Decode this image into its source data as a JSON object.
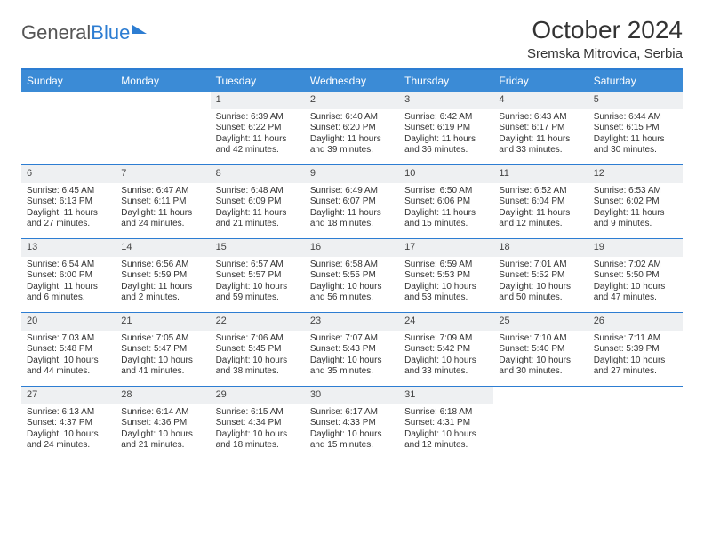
{
  "logo": {
    "text1": "General",
    "text2": "Blue"
  },
  "title": "October 2024",
  "location": "Sremska Mitrovica, Serbia",
  "day_names": [
    "Sunday",
    "Monday",
    "Tuesday",
    "Wednesday",
    "Thursday",
    "Friday",
    "Saturday"
  ],
  "colors": {
    "header_bar": "#3b8bd6",
    "border": "#2d7dd2",
    "daynum_bg": "#eef0f2",
    "text": "#333333",
    "white": "#ffffff"
  },
  "weeks": [
    [
      {
        "empty": true
      },
      {
        "empty": true
      },
      {
        "day": "1",
        "sunrise": "6:39 AM",
        "sunset": "6:22 PM",
        "daylight": "11 hours and 42 minutes."
      },
      {
        "day": "2",
        "sunrise": "6:40 AM",
        "sunset": "6:20 PM",
        "daylight": "11 hours and 39 minutes."
      },
      {
        "day": "3",
        "sunrise": "6:42 AM",
        "sunset": "6:19 PM",
        "daylight": "11 hours and 36 minutes."
      },
      {
        "day": "4",
        "sunrise": "6:43 AM",
        "sunset": "6:17 PM",
        "daylight": "11 hours and 33 minutes."
      },
      {
        "day": "5",
        "sunrise": "6:44 AM",
        "sunset": "6:15 PM",
        "daylight": "11 hours and 30 minutes."
      }
    ],
    [
      {
        "day": "6",
        "sunrise": "6:45 AM",
        "sunset": "6:13 PM",
        "daylight": "11 hours and 27 minutes."
      },
      {
        "day": "7",
        "sunrise": "6:47 AM",
        "sunset": "6:11 PM",
        "daylight": "11 hours and 24 minutes."
      },
      {
        "day": "8",
        "sunrise": "6:48 AM",
        "sunset": "6:09 PM",
        "daylight": "11 hours and 21 minutes."
      },
      {
        "day": "9",
        "sunrise": "6:49 AM",
        "sunset": "6:07 PM",
        "daylight": "11 hours and 18 minutes."
      },
      {
        "day": "10",
        "sunrise": "6:50 AM",
        "sunset": "6:06 PM",
        "daylight": "11 hours and 15 minutes."
      },
      {
        "day": "11",
        "sunrise": "6:52 AM",
        "sunset": "6:04 PM",
        "daylight": "11 hours and 12 minutes."
      },
      {
        "day": "12",
        "sunrise": "6:53 AM",
        "sunset": "6:02 PM",
        "daylight": "11 hours and 9 minutes."
      }
    ],
    [
      {
        "day": "13",
        "sunrise": "6:54 AM",
        "sunset": "6:00 PM",
        "daylight": "11 hours and 6 minutes."
      },
      {
        "day": "14",
        "sunrise": "6:56 AM",
        "sunset": "5:59 PM",
        "daylight": "11 hours and 2 minutes."
      },
      {
        "day": "15",
        "sunrise": "6:57 AM",
        "sunset": "5:57 PM",
        "daylight": "10 hours and 59 minutes."
      },
      {
        "day": "16",
        "sunrise": "6:58 AM",
        "sunset": "5:55 PM",
        "daylight": "10 hours and 56 minutes."
      },
      {
        "day": "17",
        "sunrise": "6:59 AM",
        "sunset": "5:53 PM",
        "daylight": "10 hours and 53 minutes."
      },
      {
        "day": "18",
        "sunrise": "7:01 AM",
        "sunset": "5:52 PM",
        "daylight": "10 hours and 50 minutes."
      },
      {
        "day": "19",
        "sunrise": "7:02 AM",
        "sunset": "5:50 PM",
        "daylight": "10 hours and 47 minutes."
      }
    ],
    [
      {
        "day": "20",
        "sunrise": "7:03 AM",
        "sunset": "5:48 PM",
        "daylight": "10 hours and 44 minutes."
      },
      {
        "day": "21",
        "sunrise": "7:05 AM",
        "sunset": "5:47 PM",
        "daylight": "10 hours and 41 minutes."
      },
      {
        "day": "22",
        "sunrise": "7:06 AM",
        "sunset": "5:45 PM",
        "daylight": "10 hours and 38 minutes."
      },
      {
        "day": "23",
        "sunrise": "7:07 AM",
        "sunset": "5:43 PM",
        "daylight": "10 hours and 35 minutes."
      },
      {
        "day": "24",
        "sunrise": "7:09 AM",
        "sunset": "5:42 PM",
        "daylight": "10 hours and 33 minutes."
      },
      {
        "day": "25",
        "sunrise": "7:10 AM",
        "sunset": "5:40 PM",
        "daylight": "10 hours and 30 minutes."
      },
      {
        "day": "26",
        "sunrise": "7:11 AM",
        "sunset": "5:39 PM",
        "daylight": "10 hours and 27 minutes."
      }
    ],
    [
      {
        "day": "27",
        "sunrise": "6:13 AM",
        "sunset": "4:37 PM",
        "daylight": "10 hours and 24 minutes."
      },
      {
        "day": "28",
        "sunrise": "6:14 AM",
        "sunset": "4:36 PM",
        "daylight": "10 hours and 21 minutes."
      },
      {
        "day": "29",
        "sunrise": "6:15 AM",
        "sunset": "4:34 PM",
        "daylight": "10 hours and 18 minutes."
      },
      {
        "day": "30",
        "sunrise": "6:17 AM",
        "sunset": "4:33 PM",
        "daylight": "10 hours and 15 minutes."
      },
      {
        "day": "31",
        "sunrise": "6:18 AM",
        "sunset": "4:31 PM",
        "daylight": "10 hours and 12 minutes."
      },
      {
        "empty": true
      },
      {
        "empty": true
      }
    ]
  ],
  "labels": {
    "sunrise": "Sunrise: ",
    "sunset": "Sunset: ",
    "daylight": "Daylight: "
  }
}
